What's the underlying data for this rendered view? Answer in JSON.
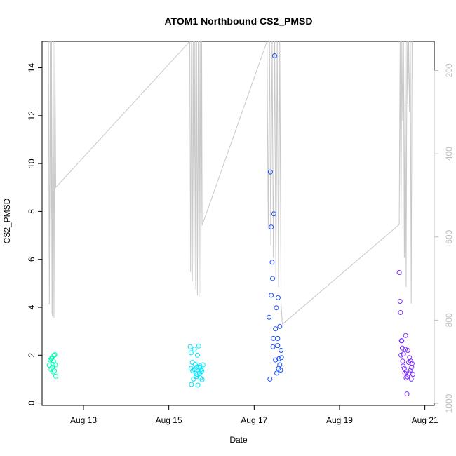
{
  "chart_data": {
    "type": "scatter",
    "title": "ATOM1 Northbound CS2_PMSD",
    "xlabel": "Date",
    "ylabel": "CS2_PMSD",
    "x_ticks": [
      "Aug 13",
      "Aug 15",
      "Aug 17",
      "Aug 19",
      "Aug 21"
    ],
    "x_tick_days": [
      13,
      15,
      17,
      19,
      21
    ],
    "xlim": [
      12.03,
      21.22
    ],
    "ylim": [
      -0.1,
      15.1
    ],
    "y_ticks": [
      0,
      2,
      4,
      6,
      8,
      10,
      12,
      14
    ],
    "right_axis": {
      "color": "#bdbdbd",
      "ticks": [
        200,
        400,
        600,
        800,
        1000
      ],
      "reversed": true,
      "lim": [
        130,
        1005
      ]
    },
    "points_series": [
      {
        "color": "#00ffb3",
        "x": [
          12.2,
          12.22,
          12.24,
          12.25,
          12.26,
          12.27,
          12.28,
          12.29,
          12.3,
          12.31,
          12.32,
          12.33,
          12.34,
          12.35
        ],
        "y": [
          1.58,
          1.8,
          1.4,
          1.85,
          1.9,
          1.5,
          1.62,
          1.3,
          1.75,
          2.0,
          1.35,
          2.02,
          1.6,
          1.12
        ]
      },
      {
        "color": "#00e5ff",
        "x": [
          15.5,
          15.52,
          15.53,
          15.55,
          15.56,
          15.58,
          15.6,
          15.62,
          15.64,
          15.65,
          15.67,
          15.68,
          15.7,
          15.72,
          15.73,
          15.74,
          15.75,
          15.76,
          15.78,
          15.8,
          15.52,
          15.6,
          15.66,
          15.71,
          15.77,
          15.63
        ],
        "y": [
          2.35,
          1.45,
          0.78,
          1.7,
          1.35,
          1.0,
          2.25,
          1.62,
          1.1,
          1.5,
          2.0,
          0.75,
          2.38,
          1.25,
          1.55,
          1.05,
          1.4,
          1.3,
          0.98,
          1.6,
          2.1,
          1.4,
          1.2,
          1.5,
          1.35,
          1.25
        ]
      },
      {
        "color": "#1a4dff",
        "x": [
          17.35,
          17.37,
          17.38,
          17.4,
          17.42,
          17.44,
          17.46,
          17.48,
          17.5,
          17.52,
          17.53,
          17.55,
          17.56,
          17.58,
          17.6,
          17.62,
          17.63,
          17.64,
          17.4,
          17.45,
          17.5,
          17.55,
          17.6,
          17.43,
          17.57
        ],
        "y": [
          3.58,
          1.0,
          9.65,
          7.35,
          5.88,
          2.35,
          7.9,
          14.5,
          1.8,
          3.98,
          1.25,
          2.7,
          4.4,
          1.85,
          3.2,
          1.38,
          2.2,
          1.9,
          4.5,
          2.7,
          3.1,
          2.4,
          1.6,
          5.2,
          1.45
        ]
      },
      {
        "color": "#7a2bff",
        "x": [
          20.4,
          20.42,
          20.43,
          20.45,
          20.47,
          20.48,
          20.5,
          20.52,
          20.53,
          20.55,
          20.56,
          20.58,
          20.6,
          20.62,
          20.63,
          20.65,
          20.67,
          20.68,
          20.7,
          20.72,
          20.44,
          20.49,
          20.54,
          20.59,
          20.64,
          20.69,
          20.46,
          20.57
        ],
        "y": [
          5.45,
          4.25,
          3.78,
          2.6,
          2.3,
          1.75,
          2.05,
          1.45,
          1.25,
          2.82,
          1.05,
          0.38,
          2.2,
          1.7,
          1.25,
          1.35,
          1.75,
          1.0,
          1.65,
          1.2,
          2.0,
          1.55,
          2.25,
          1.1,
          1.9,
          1.5,
          2.6,
          1.3
        ]
      }
    ],
    "line_series": [
      {
        "name": "",
        "axis": "right",
        "color": "#c8c8c8",
        "x": [
          12.18,
          12.2,
          12.22,
          12.24,
          12.25,
          12.27,
          12.29,
          12.31,
          12.33,
          12.35,
          15.49,
          15.51,
          15.53,
          15.55,
          15.57,
          15.59,
          15.61,
          15.63,
          15.65,
          15.67,
          15.69,
          15.71,
          15.73,
          15.75,
          15.77,
          15.78,
          17.3,
          17.33,
          17.36,
          17.39,
          17.42,
          17.45,
          17.48,
          17.51,
          17.54,
          17.57,
          17.6,
          17.63,
          17.66,
          20.4,
          20.42,
          20.44,
          20.46,
          20.48,
          20.5,
          20.52,
          20.54,
          20.56,
          20.58,
          20.6,
          20.62,
          20.64,
          20.66,
          20.68,
          20.7
        ],
        "y": [
          130,
          762,
          130,
          785,
          130,
          790,
          130,
          795,
          130,
          481,
          130,
          684,
          130,
          707,
          130,
          707,
          130,
          726,
          130,
          740,
          130,
          745,
          130,
          735,
          130,
          572,
          130,
          580,
          130,
          620,
          130,
          650,
          130,
          700,
          130,
          720,
          130,
          760,
          810,
          570,
          130,
          580,
          130,
          320,
          130,
          650,
          130,
          720,
          130,
          280,
          130,
          300,
          130,
          760,
          130
        ]
      }
    ],
    "grid": false,
    "legend": "none"
  }
}
